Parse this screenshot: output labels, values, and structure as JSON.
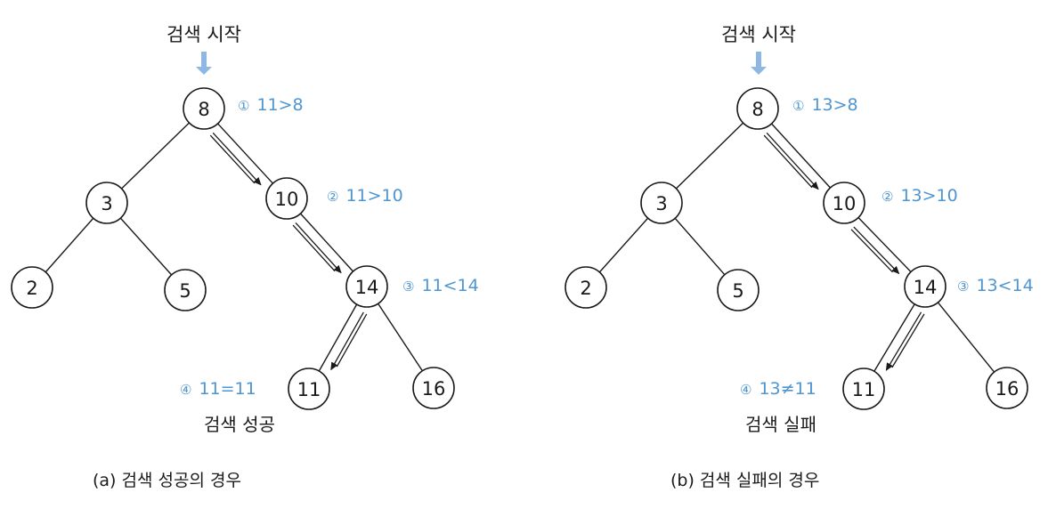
{
  "colors": {
    "annotation": "#4f95d0",
    "node_stroke": "#1a1a1a",
    "start_arrow": "#8db8e3"
  },
  "panels": [
    {
      "id": "a",
      "start_label": "검색 시작",
      "nodes": [
        {
          "key": "n8",
          "label": "8"
        },
        {
          "key": "n3",
          "label": "3"
        },
        {
          "key": "n10",
          "label": "10"
        },
        {
          "key": "n2",
          "label": "2"
        },
        {
          "key": "n5",
          "label": "5"
        },
        {
          "key": "n14",
          "label": "14"
        },
        {
          "key": "n11",
          "label": "11"
        },
        {
          "key": "n16",
          "label": "16"
        }
      ],
      "edges": [
        [
          "n8",
          "n3"
        ],
        [
          "n8",
          "n10"
        ],
        [
          "n3",
          "n2"
        ],
        [
          "n3",
          "n5"
        ],
        [
          "n10",
          "n14"
        ],
        [
          "n14",
          "n11"
        ],
        [
          "n14",
          "n16"
        ]
      ],
      "search_path": [
        "n8",
        "n10",
        "n14",
        "n11"
      ],
      "steps": [
        {
          "num": "①",
          "text": "11>8"
        },
        {
          "num": "②",
          "text": "11>10"
        },
        {
          "num": "③",
          "text": "11<14"
        },
        {
          "num": "④",
          "text": "11=11"
        }
      ],
      "result_label": "검색 성공",
      "caption": "(a) 검색 성공의 경우"
    },
    {
      "id": "b",
      "start_label": "검색 시작",
      "nodes": [
        {
          "key": "n8",
          "label": "8"
        },
        {
          "key": "n3",
          "label": "3"
        },
        {
          "key": "n10",
          "label": "10"
        },
        {
          "key": "n2",
          "label": "2"
        },
        {
          "key": "n5",
          "label": "5"
        },
        {
          "key": "n14",
          "label": "14"
        },
        {
          "key": "n11",
          "label": "11"
        },
        {
          "key": "n16",
          "label": "16"
        }
      ],
      "edges": [
        [
          "n8",
          "n3"
        ],
        [
          "n8",
          "n10"
        ],
        [
          "n3",
          "n2"
        ],
        [
          "n3",
          "n5"
        ],
        [
          "n10",
          "n14"
        ],
        [
          "n14",
          "n11"
        ],
        [
          "n14",
          "n16"
        ]
      ],
      "search_path": [
        "n8",
        "n10",
        "n14",
        "n11"
      ],
      "steps": [
        {
          "num": "①",
          "text": "13>8"
        },
        {
          "num": "②",
          "text": "13>10"
        },
        {
          "num": "③",
          "text": "13<14"
        },
        {
          "num": "④",
          "text": "13≠11"
        }
      ],
      "result_label": "검색 실패",
      "caption": "(b) 검색 실패의 경우"
    }
  ]
}
